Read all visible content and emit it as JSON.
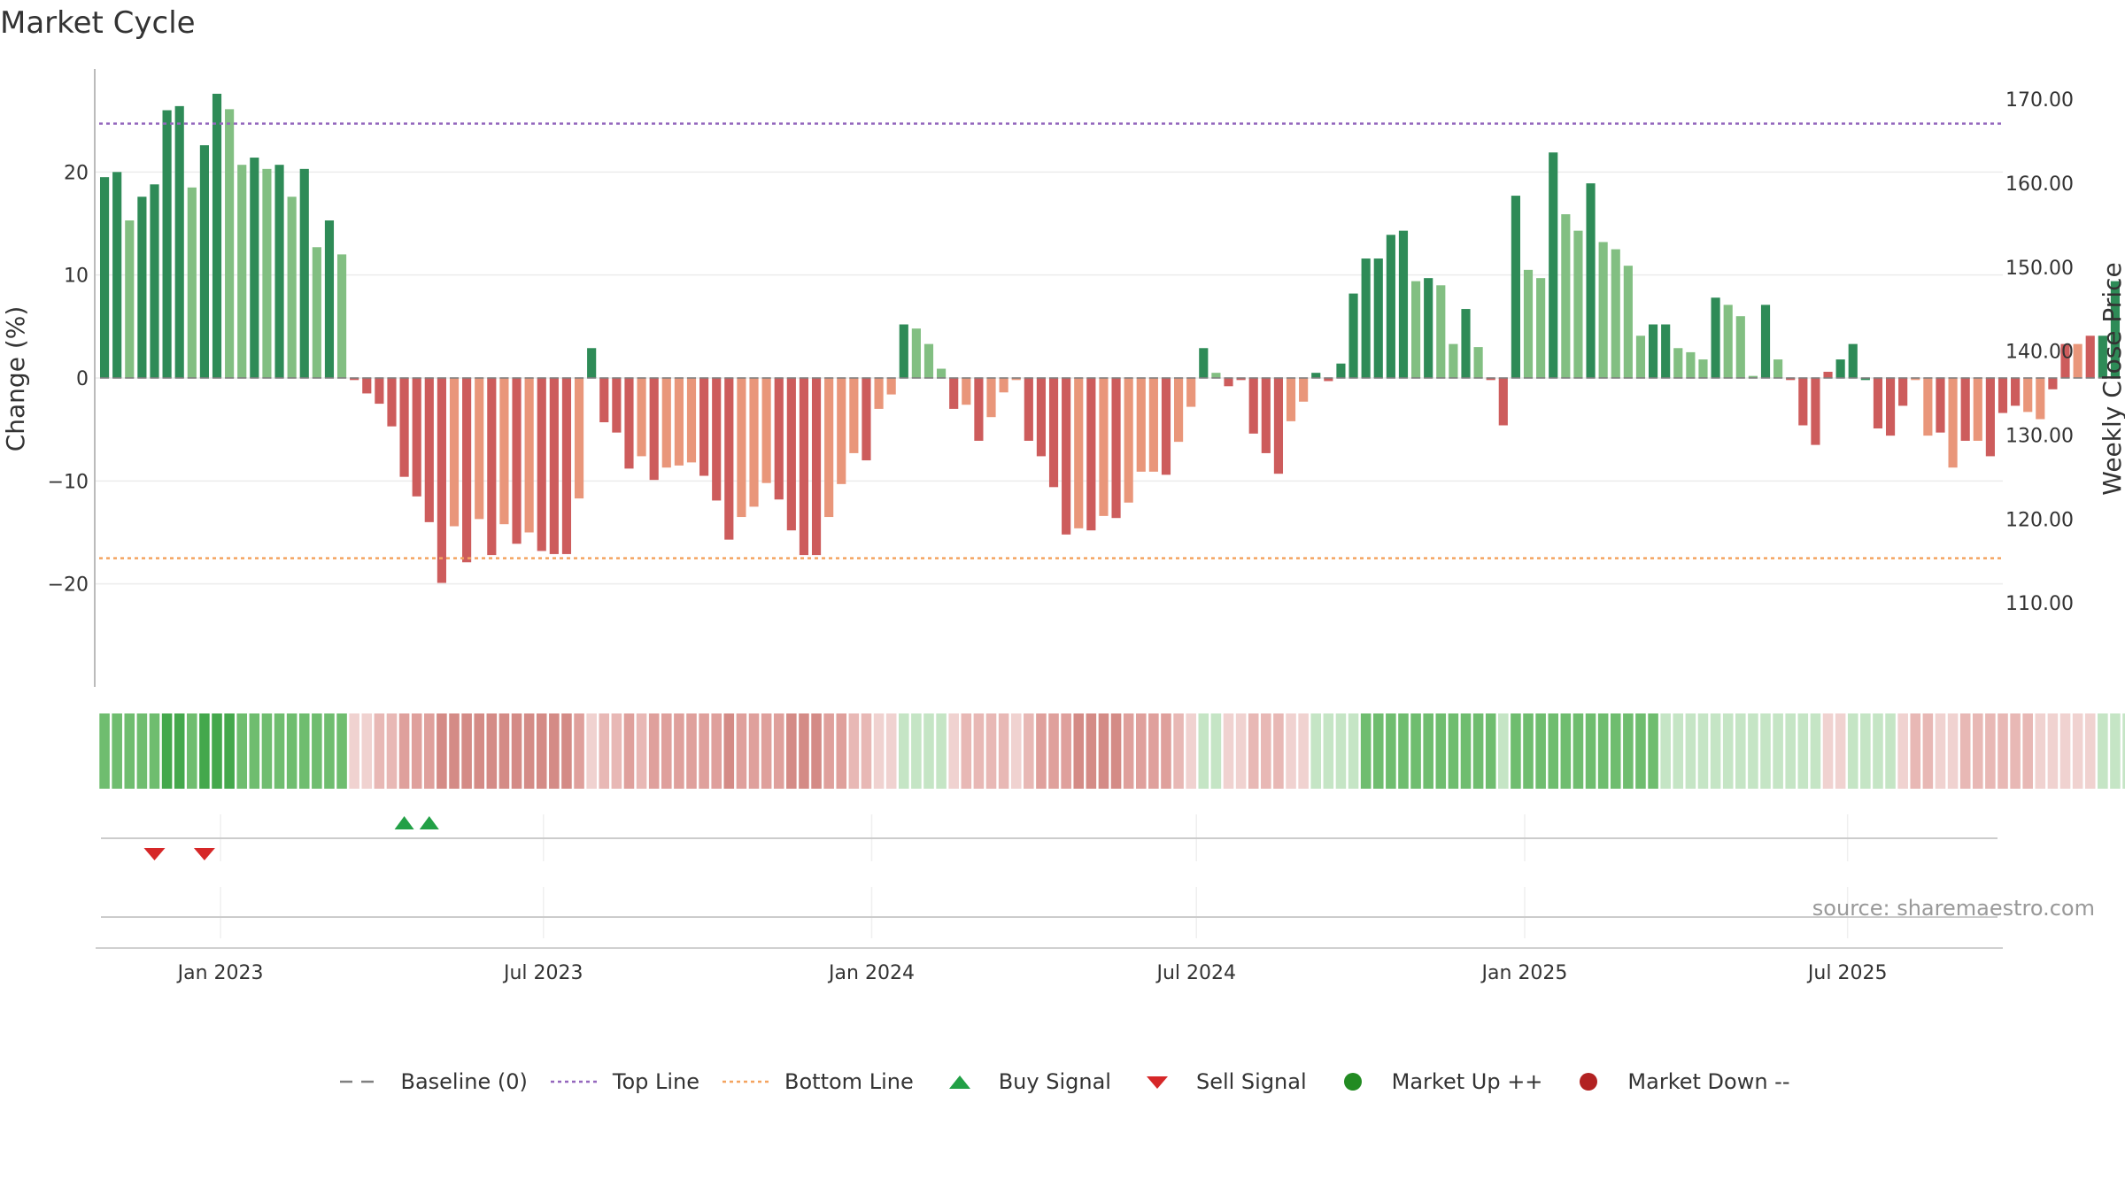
{
  "chart_data": {
    "type": "bar",
    "title": "Market Cycle",
    "ylabel": "Change (%)",
    "y2label": "Weekly Close Price",
    "ylim": [
      -30,
      30
    ],
    "yticks": [
      20,
      10,
      0,
      -10,
      -20
    ],
    "ytick_labels": [
      "20",
      "10",
      "0",
      "−10",
      "−20"
    ],
    "y2lim": [
      100,
      173.6
    ],
    "y2ticks": [
      170,
      160,
      150,
      140,
      130,
      120,
      110
    ],
    "y2tick_labels": [
      "170.00",
      "160.00",
      "150.00",
      "140.00",
      "130.00",
      "120.00",
      "110.00"
    ],
    "xlim": [
      "2022-10-23",
      "2025-09-26"
    ],
    "xticks": [
      "2023-01-01",
      "2023-07-01",
      "2024-01-01",
      "2024-07-01",
      "2025-01-01",
      "2025-07-01"
    ],
    "xtick_labels": [
      "Jan 2023",
      "Jul 2023",
      "Jan 2024",
      "Jul 2024",
      "Jan 2025",
      "Jul 2025"
    ],
    "first_week": "2022-10-28",
    "top_line": 24.7,
    "bottom_line": -17.5,
    "baseline": 0,
    "values": [
      19.5,
      20,
      15.3,
      17.6,
      18.8,
      26,
      26.4,
      18.5,
      22.6,
      27.6,
      26.1,
      20.7,
      21.4,
      20.3,
      20.7,
      17.6,
      20.3,
      12.7,
      15.3,
      12,
      -0.2,
      -1.5,
      -2.5,
      -4.7,
      -9.6,
      -11.5,
      -14,
      -19.9,
      -14.4,
      -17.9,
      -13.7,
      -17.2,
      -14.2,
      -16.1,
      -15,
      -16.8,
      -17.1,
      -17.1,
      -11.7,
      2.9,
      -4.3,
      -5.3,
      -8.8,
      -7.6,
      -9.9,
      -8.7,
      -8.5,
      -8.2,
      -9.5,
      -11.9,
      -15.7,
      -13.5,
      -12.5,
      -10.2,
      -11.8,
      -14.8,
      -17.2,
      -17.2,
      -13.5,
      -10.3,
      -7.3,
      -8,
      -3,
      -1.6,
      5.2,
      4.8,
      3.3,
      0.9,
      -3,
      -2.6,
      -6.1,
      -3.8,
      -1.4,
      -0.2,
      -6.1,
      -7.6,
      -10.6,
      -15.2,
      -14.6,
      -14.8,
      -13.4,
      -13.6,
      -12.1,
      -9.1,
      -9.1,
      -9.4,
      -6.2,
      -2.8,
      2.9,
      0.5,
      -0.8,
      -0.2,
      -5.4,
      -7.3,
      -9.3,
      -4.2,
      -2.3,
      0.5,
      -0.3,
      1.4,
      8.2,
      11.6,
      11.6,
      13.9,
      14.3,
      9.4,
      9.7,
      9,
      3.3,
      6.7,
      3,
      -0.2,
      -4.6,
      17.7,
      10.5,
      9.7,
      21.9,
      15.9,
      14.3,
      18.9,
      13.2,
      12.5,
      10.9,
      4.1,
      5.2,
      5.2,
      2.9,
      2.5,
      1.8,
      7.8,
      7.1,
      6,
      0.2,
      7.1,
      1.8,
      -0.2,
      -4.6,
      -6.5,
      0.6,
      1.8,
      3.3,
      -0.2,
      -4.9,
      -5.6,
      -2.7,
      -0.2,
      -5.6,
      -5.3,
      -8.7,
      -6.1,
      -6.1,
      -7.6,
      -3.4,
      -2.7,
      -3.3,
      -4,
      -1.1,
      3.3,
      3.3,
      4.1,
      4.1,
      9.4
    ],
    "color_groups": [
      2,
      2,
      1,
      2,
      2,
      2,
      2,
      1,
      2,
      2,
      1,
      1,
      2,
      1,
      2,
      1,
      2,
      1,
      2,
      1,
      3,
      3,
      3,
      3,
      3,
      3,
      3,
      3,
      4,
      3,
      4,
      3,
      4,
      3,
      4,
      3,
      3,
      3,
      4,
      2,
      3,
      3,
      3,
      4,
      3,
      4,
      4,
      4,
      3,
      3,
      3,
      4,
      4,
      4,
      3,
      3,
      3,
      3,
      4,
      4,
      4,
      3,
      4,
      4,
      2,
      1,
      1,
      1,
      3,
      4,
      3,
      4,
      4,
      4,
      3,
      3,
      3,
      3,
      4,
      3,
      4,
      3,
      4,
      4,
      4,
      3,
      4,
      4,
      2,
      1,
      3,
      3,
      3,
      3,
      3,
      4,
      4,
      2,
      3,
      2,
      2,
      2,
      2,
      2,
      2,
      1,
      2,
      1,
      1,
      2,
      1,
      3,
      3,
      2,
      1,
      1,
      2,
      1,
      1,
      2,
      1,
      1,
      1,
      1,
      2,
      2,
      1,
      1,
      1,
      2,
      1,
      1,
      1,
      2,
      1,
      3,
      3,
      3,
      3,
      2,
      2,
      2,
      3,
      3,
      3,
      4,
      4,
      3,
      4,
      3,
      4,
      3,
      3,
      3,
      4,
      4,
      3,
      3,
      4,
      3,
      2,
      2,
      2,
      2,
      2
    ],
    "strip_shades": [
      6,
      6,
      6,
      6,
      6,
      7,
      7,
      6,
      7,
      7,
      7,
      6,
      6,
      6,
      6,
      6,
      6,
      6,
      6,
      6,
      1,
      1,
      2,
      2,
      3,
      3,
      3,
      4,
      4,
      4,
      4,
      4,
      4,
      4,
      4,
      4,
      4,
      4,
      3,
      1,
      2,
      2,
      3,
      2,
      3,
      3,
      3,
      3,
      3,
      3,
      4,
      3,
      3,
      3,
      3,
      4,
      4,
      4,
      3,
      3,
      2,
      2,
      1,
      1,
      5,
      5,
      5,
      5,
      1,
      2,
      2,
      2,
      2,
      1,
      2,
      3,
      3,
      3,
      4,
      4,
      4,
      4,
      3,
      3,
      3,
      3,
      2,
      1,
      5,
      5,
      1,
      1,
      2,
      2,
      2,
      1,
      1,
      5,
      5,
      5,
      5,
      6,
      6,
      6,
      6,
      6,
      6,
      6,
      6,
      6,
      6,
      6,
      5,
      6,
      6,
      6,
      6,
      6,
      6,
      6,
      6,
      6,
      6,
      6,
      6,
      5,
      5,
      5,
      5,
      5,
      5,
      5,
      5,
      5,
      5,
      5,
      5,
      5,
      1,
      1,
      5,
      5,
      5,
      5,
      1,
      2,
      2,
      1,
      1,
      2,
      2,
      2,
      2,
      2,
      2,
      1,
      1,
      1,
      1,
      1,
      5,
      5,
      5,
      5,
      5
    ],
    "buy_signals": [
      "2023-04-14",
      "2023-04-28"
    ],
    "sell_signals": [
      "2022-11-25",
      "2022-12-23"
    ],
    "legend_position": "bottom-center",
    "legend": [
      {
        "key": "baseline",
        "label": "Baseline (0)"
      },
      {
        "key": "top",
        "label": "Top Line"
      },
      {
        "key": "bottom",
        "label": "Bottom Line"
      },
      {
        "key": "buy",
        "label": "Buy Signal"
      },
      {
        "key": "sell",
        "label": "Sell Signal"
      },
      {
        "key": "up",
        "label": "Market Up ++"
      },
      {
        "key": "down",
        "label": "Market Down --"
      }
    ],
    "source_label": "source: sharemaestro.com",
    "colors": {
      "bar_group_1": "#82bf82",
      "bar_group_2": "#2e8b57",
      "bar_group_3": "#cd5c5c",
      "bar_group_4": "#e9967a",
      "strip_1": "#f0d2d0",
      "strip_2": "#e8b8b5",
      "strip_3": "#dfa09c",
      "strip_4": "#d48b86",
      "strip_5": "#c5e5c5",
      "strip_6": "#6fbd6f",
      "strip_7": "#44a84c",
      "top_line": "#9467bd",
      "bottom_line": "#f4a460",
      "buy": "#22a046",
      "sell": "#d62728",
      "market_up": "#228b22",
      "market_down": "#b22222",
      "baseline": "#808080"
    }
  }
}
